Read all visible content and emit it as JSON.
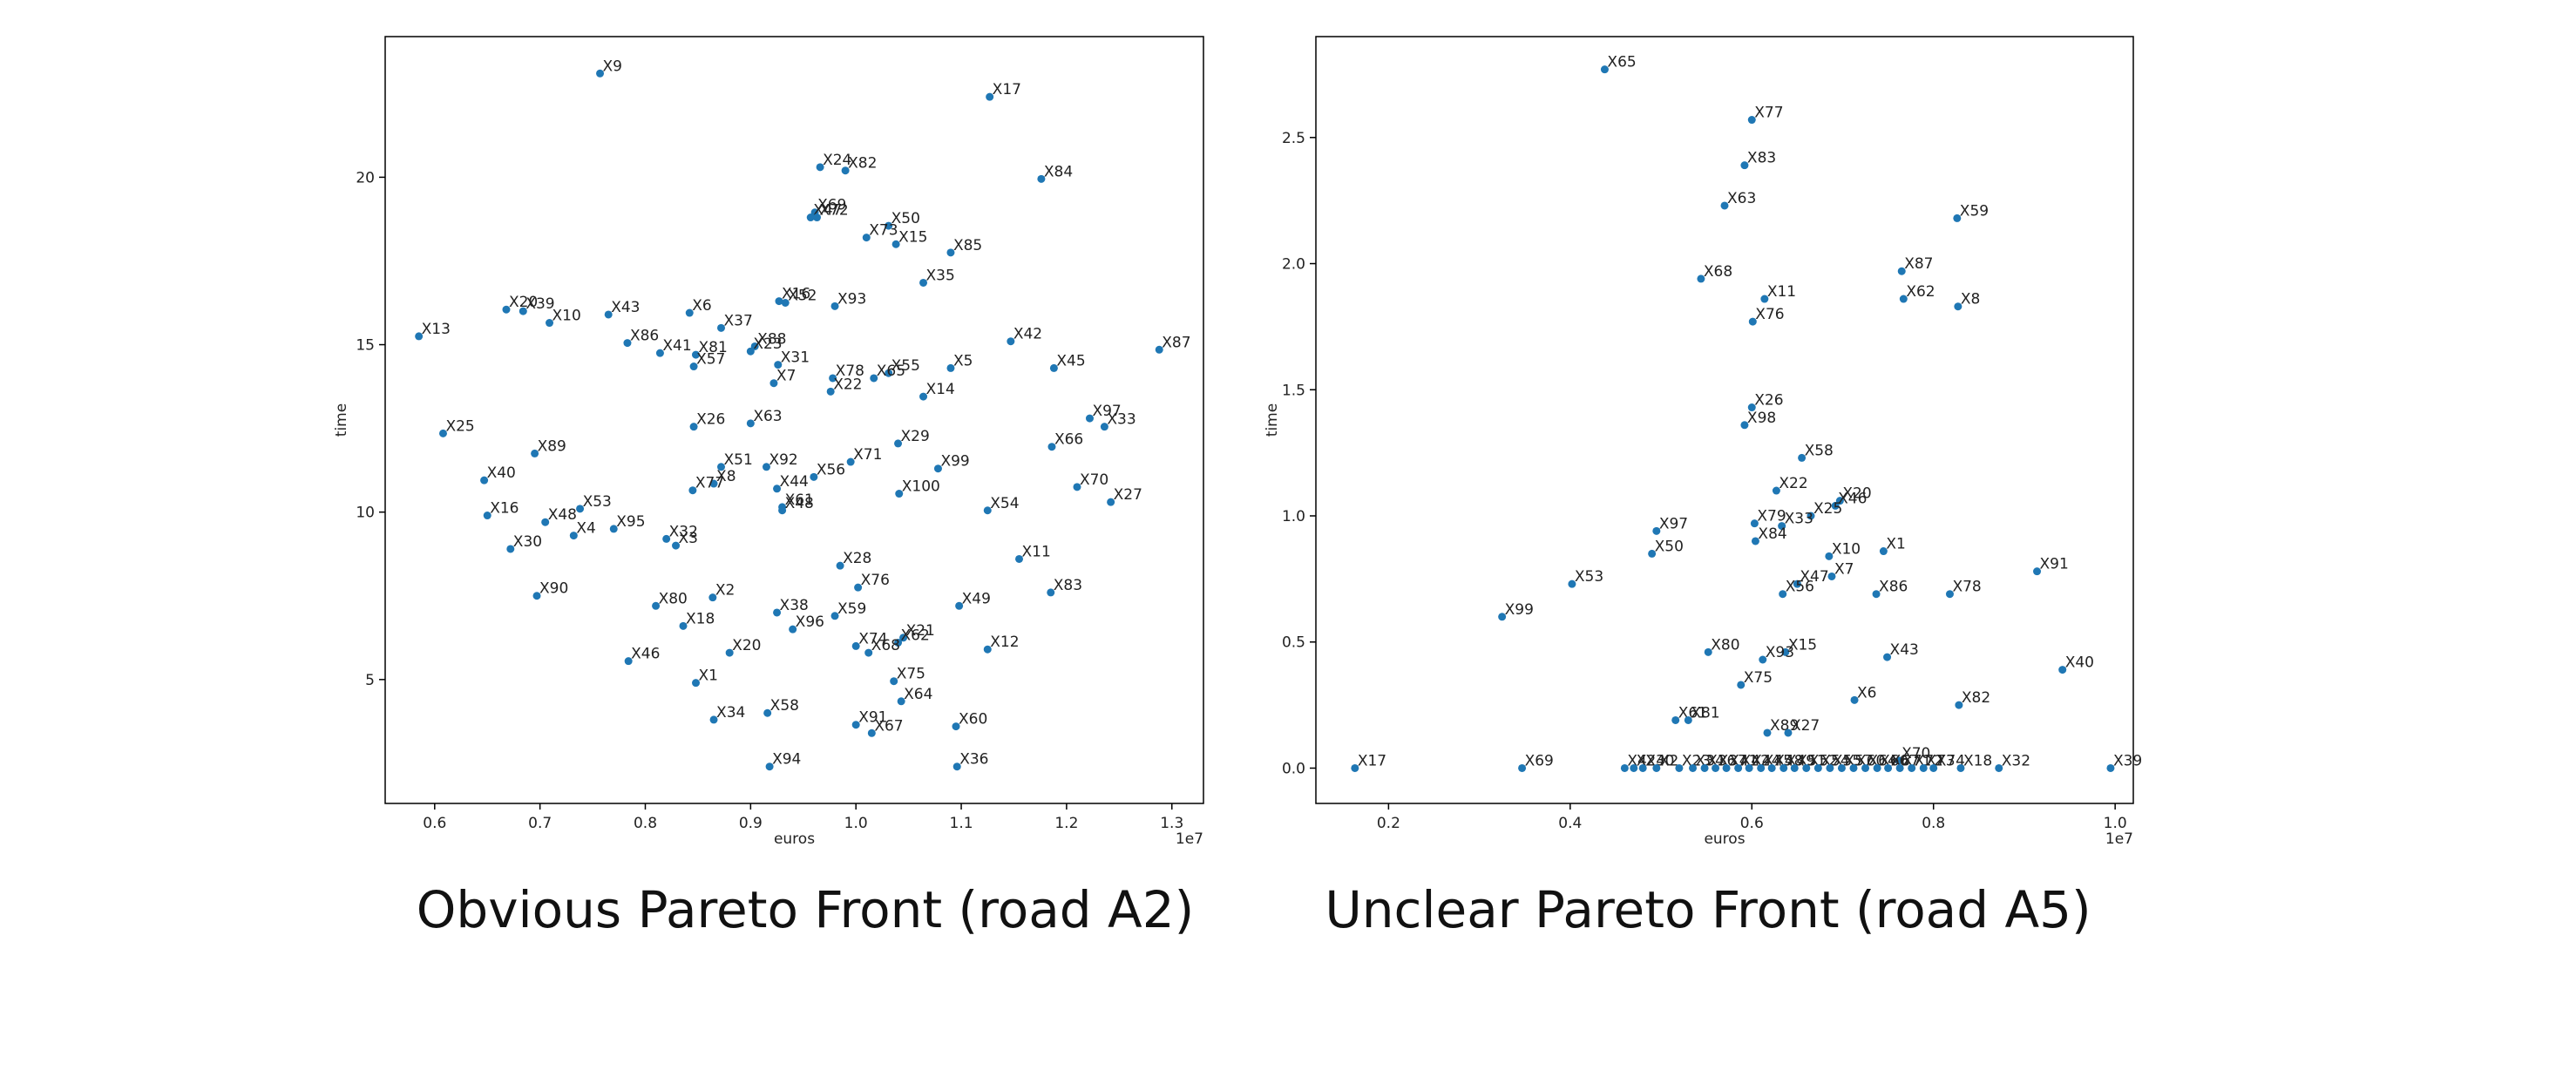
{
  "captions": {
    "left": "Obvious Pareto Front (road A2)",
    "right": "Unclear Pareto Front (road A5)"
  },
  "colors": {
    "marker": "#1f77b4",
    "axis": "#000000",
    "text": "#222222"
  },
  "chart_data": [
    {
      "type": "scatter",
      "title": "",
      "xlabel": "euros",
      "ylabel": "time",
      "x_offset_label": "1e7",
      "xlim": [
        0.553,
        1.33
      ],
      "ylim": [
        1.3,
        24.2
      ],
      "xticks": [
        0.6,
        0.7,
        0.8,
        0.9,
        1.0,
        1.1,
        1.2,
        1.3
      ],
      "xtick_labels": [
        "0.6",
        "0.7",
        "0.8",
        "0.9",
        "1.0",
        "1.1",
        "1.2",
        "1.3"
      ],
      "yticks": [
        5,
        10,
        15,
        20
      ],
      "ytick_labels": [
        "5",
        "10",
        "15",
        "20"
      ],
      "grid": false,
      "points": [
        {
          "label": "X9",
          "x": 0.757,
          "y": 23.1
        },
        {
          "label": "X17",
          "x": 1.127,
          "y": 22.4
        },
        {
          "label": "X24",
          "x": 0.966,
          "y": 20.3
        },
        {
          "label": "X82",
          "x": 0.99,
          "y": 20.2
        },
        {
          "label": "X84",
          "x": 1.176,
          "y": 19.95
        },
        {
          "label": "X69",
          "x": 0.961,
          "y": 18.95
        },
        {
          "label": "X47",
          "x": 0.957,
          "y": 18.8
        },
        {
          "label": "X72",
          "x": 0.963,
          "y": 18.8
        },
        {
          "label": "X50",
          "x": 1.031,
          "y": 18.55
        },
        {
          "label": "X73",
          "x": 1.01,
          "y": 18.2
        },
        {
          "label": "X15",
          "x": 1.038,
          "y": 18.0
        },
        {
          "label": "X85",
          "x": 1.09,
          "y": 17.75
        },
        {
          "label": "X35",
          "x": 1.064,
          "y": 16.85
        },
        {
          "label": "X16b",
          "x": 0.927,
          "y": 16.3
        },
        {
          "label": "X52",
          "x": 0.933,
          "y": 16.25
        },
        {
          "label": "X93",
          "x": 0.98,
          "y": 16.15
        },
        {
          "label": "X20b",
          "x": 0.668,
          "y": 16.05
        },
        {
          "label": "X39",
          "x": 0.684,
          "y": 16.0
        },
        {
          "label": "X43",
          "x": 0.765,
          "y": 15.9
        },
        {
          "label": "X6",
          "x": 0.842,
          "y": 15.95
        },
        {
          "label": "X10",
          "x": 0.709,
          "y": 15.65
        },
        {
          "label": "X37",
          "x": 0.872,
          "y": 15.5
        },
        {
          "label": "X13",
          "x": 0.585,
          "y": 15.25
        },
        {
          "label": "X42",
          "x": 1.147,
          "y": 15.1
        },
        {
          "label": "X86",
          "x": 0.783,
          "y": 15.05
        },
        {
          "label": "X88",
          "x": 0.904,
          "y": 14.95
        },
        {
          "label": "X23",
          "x": 0.9,
          "y": 14.8
        },
        {
          "label": "X41",
          "x": 0.814,
          "y": 14.75
        },
        {
          "label": "X81",
          "x": 0.848,
          "y": 14.7
        },
        {
          "label": "X87",
          "x": 1.288,
          "y": 14.85
        },
        {
          "label": "X57",
          "x": 0.846,
          "y": 14.35
        },
        {
          "label": "X31",
          "x": 0.926,
          "y": 14.4
        },
        {
          "label": "X45",
          "x": 1.188,
          "y": 14.3
        },
        {
          "label": "X5",
          "x": 1.09,
          "y": 14.3
        },
        {
          "label": "X55",
          "x": 1.031,
          "y": 14.15
        },
        {
          "label": "X65b",
          "x": 1.017,
          "y": 14.0
        },
        {
          "label": "X78",
          "x": 0.978,
          "y": 14.0
        },
        {
          "label": "X7",
          "x": 0.922,
          "y": 13.85
        },
        {
          "label": "X22",
          "x": 0.976,
          "y": 13.6
        },
        {
          "label": "X14",
          "x": 1.064,
          "y": 13.45
        },
        {
          "label": "X97",
          "x": 1.222,
          "y": 12.8
        },
        {
          "label": "X63",
          "x": 0.9,
          "y": 12.65
        },
        {
          "label": "X26",
          "x": 0.846,
          "y": 12.55
        },
        {
          "label": "X33",
          "x": 1.236,
          "y": 12.55
        },
        {
          "label": "X25",
          "x": 0.608,
          "y": 12.35
        },
        {
          "label": "X29",
          "x": 1.04,
          "y": 12.05
        },
        {
          "label": "X66",
          "x": 1.186,
          "y": 11.95
        },
        {
          "label": "X89",
          "x": 0.695,
          "y": 11.75
        },
        {
          "label": "X71",
          "x": 0.995,
          "y": 11.5
        },
        {
          "label": "X51",
          "x": 0.872,
          "y": 11.35
        },
        {
          "label": "X92",
          "x": 0.915,
          "y": 11.35
        },
        {
          "label": "X99",
          "x": 1.078,
          "y": 11.3
        },
        {
          "label": "X56",
          "x": 0.96,
          "y": 11.05
        },
        {
          "label": "X40",
          "x": 0.647,
          "y": 10.95
        },
        {
          "label": "X8",
          "x": 0.865,
          "y": 10.85
        },
        {
          "label": "X44",
          "x": 0.925,
          "y": 10.7
        },
        {
          "label": "X70",
          "x": 1.21,
          "y": 10.75
        },
        {
          "label": "X77",
          "x": 0.845,
          "y": 10.65
        },
        {
          "label": "X100",
          "x": 1.041,
          "y": 10.55
        },
        {
          "label": "X27",
          "x": 1.242,
          "y": 10.3
        },
        {
          "label": "X53",
          "x": 0.738,
          "y": 10.1
        },
        {
          "label": "X54",
          "x": 1.125,
          "y": 10.05
        },
        {
          "label": "X61",
          "x": 0.93,
          "y": 10.15
        },
        {
          "label": "X48b",
          "x": 0.93,
          "y": 10.05
        },
        {
          "label": "X16",
          "x": 0.65,
          "y": 9.9
        },
        {
          "label": "X48",
          "x": 0.705,
          "y": 9.7
        },
        {
          "label": "X95",
          "x": 0.77,
          "y": 9.5
        },
        {
          "label": "X4",
          "x": 0.732,
          "y": 9.3
        },
        {
          "label": "X32",
          "x": 0.82,
          "y": 9.2
        },
        {
          "label": "X3",
          "x": 0.829,
          "y": 9.0
        },
        {
          "label": "X30",
          "x": 0.672,
          "y": 8.9
        },
        {
          "label": "X11",
          "x": 1.155,
          "y": 8.6
        },
        {
          "label": "X28",
          "x": 0.985,
          "y": 8.4
        },
        {
          "label": "X76",
          "x": 1.002,
          "y": 7.75
        },
        {
          "label": "X83",
          "x": 1.185,
          "y": 7.6
        },
        {
          "label": "X90",
          "x": 0.697,
          "y": 7.5
        },
        {
          "label": "X2",
          "x": 0.864,
          "y": 7.45
        },
        {
          "label": "X80",
          "x": 0.81,
          "y": 7.2
        },
        {
          "label": "X49",
          "x": 1.098,
          "y": 7.2
        },
        {
          "label": "X38",
          "x": 0.925,
          "y": 7.0
        },
        {
          "label": "X59",
          "x": 0.98,
          "y": 6.9
        },
        {
          "label": "X18",
          "x": 0.836,
          "y": 6.6
        },
        {
          "label": "X96",
          "x": 0.94,
          "y": 6.5
        },
        {
          "label": "X21",
          "x": 1.045,
          "y": 6.25
        },
        {
          "label": "X62",
          "x": 1.04,
          "y": 6.1
        },
        {
          "label": "X74",
          "x": 1.0,
          "y": 6.0
        },
        {
          "label": "X12",
          "x": 1.125,
          "y": 5.9
        },
        {
          "label": "X20",
          "x": 0.88,
          "y": 5.8
        },
        {
          "label": "X68",
          "x": 1.012,
          "y": 5.8
        },
        {
          "label": "X46",
          "x": 0.784,
          "y": 5.55
        },
        {
          "label": "X75",
          "x": 1.036,
          "y": 4.95
        },
        {
          "label": "X1",
          "x": 0.848,
          "y": 4.9
        },
        {
          "label": "X64",
          "x": 1.043,
          "y": 4.35
        },
        {
          "label": "X58",
          "x": 0.916,
          "y": 4.0
        },
        {
          "label": "X34",
          "x": 0.865,
          "y": 3.8
        },
        {
          "label": "X91",
          "x": 1.0,
          "y": 3.65
        },
        {
          "label": "X60",
          "x": 1.095,
          "y": 3.6
        },
        {
          "label": "X67",
          "x": 1.015,
          "y": 3.4
        },
        {
          "label": "X94",
          "x": 0.918,
          "y": 2.4
        },
        {
          "label": "X36",
          "x": 1.096,
          "y": 2.4
        }
      ]
    },
    {
      "type": "scatter",
      "title": "",
      "xlabel": "euros",
      "ylabel": "time",
      "x_offset_label": "1e7",
      "xlim": [
        0.12,
        1.02
      ],
      "ylim": [
        -0.14,
        2.9
      ],
      "xticks": [
        0.2,
        0.4,
        0.6,
        0.8,
        1.0
      ],
      "xtick_labels": [
        "0.2",
        "0.4",
        "0.6",
        "0.8",
        "1.0"
      ],
      "yticks": [
        0.0,
        0.5,
        1.0,
        1.5,
        2.0,
        2.5
      ],
      "ytick_labels": [
        "0.0",
        "0.5",
        "1.0",
        "1.5",
        "2.0",
        "2.5"
      ],
      "grid": false,
      "points": [
        {
          "label": "X65",
          "x": 0.438,
          "y": 2.77
        },
        {
          "label": "X77",
          "x": 0.6,
          "y": 2.57
        },
        {
          "label": "X83",
          "x": 0.592,
          "y": 2.39
        },
        {
          "label": "X63",
          "x": 0.57,
          "y": 2.23
        },
        {
          "label": "X59",
          "x": 0.826,
          "y": 2.18
        },
        {
          "label": "X87",
          "x": 0.765,
          "y": 1.97
        },
        {
          "label": "X68",
          "x": 0.544,
          "y": 1.94
        },
        {
          "label": "X11",
          "x": 0.614,
          "y": 1.86
        },
        {
          "label": "X62",
          "x": 0.767,
          "y": 1.86
        },
        {
          "label": "X8",
          "x": 0.827,
          "y": 1.83
        },
        {
          "label": "X76",
          "x": 0.601,
          "y": 1.77
        },
        {
          "label": "X26",
          "x": 0.6,
          "y": 1.43
        },
        {
          "label": "X98",
          "x": 0.592,
          "y": 1.36
        },
        {
          "label": "X58",
          "x": 0.655,
          "y": 1.23
        },
        {
          "label": "X22",
          "x": 0.627,
          "y": 1.1
        },
        {
          "label": "X20",
          "x": 0.697,
          "y": 1.06
        },
        {
          "label": "X46",
          "x": 0.692,
          "y": 1.04
        },
        {
          "label": "X25",
          "x": 0.665,
          "y": 1.0
        },
        {
          "label": "X79",
          "x": 0.603,
          "y": 0.97
        },
        {
          "label": "X33",
          "x": 0.633,
          "y": 0.96
        },
        {
          "label": "X97",
          "x": 0.495,
          "y": 0.94
        },
        {
          "label": "X84",
          "x": 0.604,
          "y": 0.9
        },
        {
          "label": "X1",
          "x": 0.745,
          "y": 0.86
        },
        {
          "label": "X50",
          "x": 0.49,
          "y": 0.85
        },
        {
          "label": "X10",
          "x": 0.685,
          "y": 0.84
        },
        {
          "label": "X91",
          "x": 0.914,
          "y": 0.78
        },
        {
          "label": "X7",
          "x": 0.688,
          "y": 0.76
        },
        {
          "label": "X53",
          "x": 0.402,
          "y": 0.73
        },
        {
          "label": "X47",
          "x": 0.65,
          "y": 0.73
        },
        {
          "label": "X56",
          "x": 0.634,
          "y": 0.69
        },
        {
          "label": "X86",
          "x": 0.737,
          "y": 0.69
        },
        {
          "label": "X78",
          "x": 0.818,
          "y": 0.69
        },
        {
          "label": "X99",
          "x": 0.325,
          "y": 0.6
        },
        {
          "label": "X80",
          "x": 0.552,
          "y": 0.46
        },
        {
          "label": "X15",
          "x": 0.637,
          "y": 0.46
        },
        {
          "label": "X93",
          "x": 0.612,
          "y": 0.43
        },
        {
          "label": "X43",
          "x": 0.749,
          "y": 0.44
        },
        {
          "label": "X40",
          "x": 0.942,
          "y": 0.39
        },
        {
          "label": "X75",
          "x": 0.588,
          "y": 0.33
        },
        {
          "label": "X6",
          "x": 0.713,
          "y": 0.27
        },
        {
          "label": "X82",
          "x": 0.828,
          "y": 0.25
        },
        {
          "label": "X61",
          "x": 0.516,
          "y": 0.19
        },
        {
          "label": "X81",
          "x": 0.53,
          "y": 0.19
        },
        {
          "label": "X89",
          "x": 0.617,
          "y": 0.14
        },
        {
          "label": "X27",
          "x": 0.64,
          "y": 0.14
        },
        {
          "label": "X70",
          "x": 0.762,
          "y": 0.03
        },
        {
          "label": "X17",
          "x": 0.163,
          "y": 0.0
        },
        {
          "label": "X69",
          "x": 0.347,
          "y": 0.0
        },
        {
          "label": "X4",
          "x": 0.46,
          "y": 0.0
        },
        {
          "label": "X24",
          "x": 0.47,
          "y": 0.0
        },
        {
          "label": "X30",
          "x": 0.48,
          "y": 0.0
        },
        {
          "label": "X2",
          "x": 0.495,
          "y": 0.0
        },
        {
          "label": "X23",
          "x": 0.52,
          "y": 0.0
        },
        {
          "label": "X34",
          "x": 0.535,
          "y": 0.0
        },
        {
          "label": "X36",
          "x": 0.548,
          "y": 0.0
        },
        {
          "label": "X37",
          "x": 0.56,
          "y": 0.0
        },
        {
          "label": "X41",
          "x": 0.572,
          "y": 0.0
        },
        {
          "label": "X42",
          "x": 0.585,
          "y": 0.0
        },
        {
          "label": "X44",
          "x": 0.597,
          "y": 0.0
        },
        {
          "label": "X45",
          "x": 0.61,
          "y": 0.0
        },
        {
          "label": "X48",
          "x": 0.622,
          "y": 0.0
        },
        {
          "label": "X49",
          "x": 0.635,
          "y": 0.0
        },
        {
          "label": "X51",
          "x": 0.647,
          "y": 0.0
        },
        {
          "label": "X52",
          "x": 0.66,
          "y": 0.0
        },
        {
          "label": "X54",
          "x": 0.673,
          "y": 0.0
        },
        {
          "label": "X55",
          "x": 0.686,
          "y": 0.0
        },
        {
          "label": "X57",
          "x": 0.699,
          "y": 0.0
        },
        {
          "label": "X60",
          "x": 0.712,
          "y": 0.0
        },
        {
          "label": "X64",
          "x": 0.725,
          "y": 0.0
        },
        {
          "label": "X66",
          "x": 0.738,
          "y": 0.0
        },
        {
          "label": "X67",
          "x": 0.75,
          "y": 0.0
        },
        {
          "label": "X71",
          "x": 0.763,
          "y": 0.0
        },
        {
          "label": "X72",
          "x": 0.776,
          "y": 0.0
        },
        {
          "label": "X73",
          "x": 0.789,
          "y": 0.0
        },
        {
          "label": "X74",
          "x": 0.8,
          "y": 0.0
        },
        {
          "label": "X18",
          "x": 0.83,
          "y": 0.0
        },
        {
          "label": "X32",
          "x": 0.872,
          "y": 0.0
        },
        {
          "label": "X39",
          "x": 0.995,
          "y": 0.0
        }
      ]
    }
  ]
}
